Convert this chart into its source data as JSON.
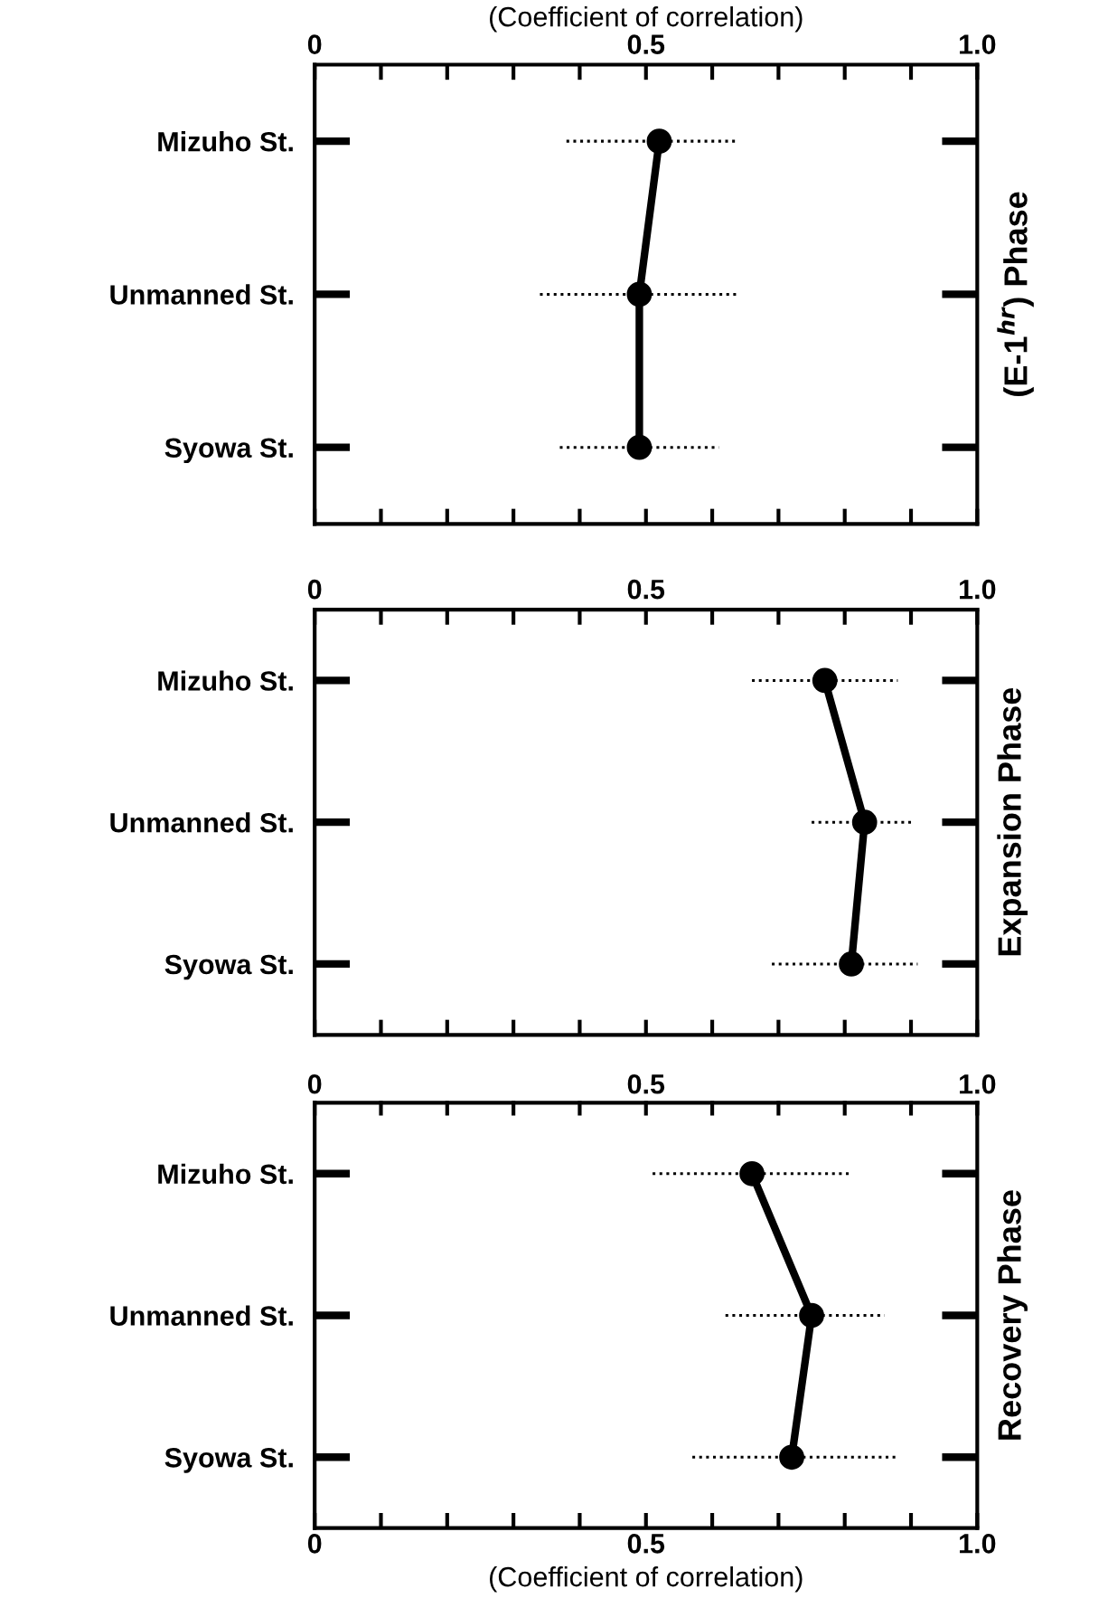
{
  "chart_data": [
    {
      "type": "line",
      "orientation": "horizontal",
      "categories": [
        "Mizuho St.",
        "Unmanned St.",
        "Syowa St."
      ],
      "xlabel": "(Coefficient of correlation)",
      "y2label": "(E-1$^{hr}$) Phase",
      "series": [
        {
          "color": "#000000",
          "values": [
            0.52,
            0.49,
            0.49
          ],
          "errors": [
            [
              0.38,
              0.64
            ],
            [
              0.34,
              0.64
            ],
            [
              0.37,
              0.61
            ]
          ]
        }
      ],
      "xlim": [
        0,
        1
      ],
      "xticks": [
        0,
        {
          "value": 0.1,
          "label": null
        },
        {
          "value": 0.2,
          "label": null
        },
        {
          "value": 0.3,
          "label": null
        },
        {
          "value": 0.4,
          "label": null
        },
        0.5,
        {
          "value": 0.6,
          "label": null
        },
        {
          "value": 0.7,
          "label": null
        },
        {
          "value": 0.8,
          "label": null
        },
        {
          "value": 0.9,
          "label": null
        },
        {
          "value": 1,
          "label": "1.0"
        }
      ],
      "marker": "circle",
      "line_style": "solid"
    },
    {
      "type": "line",
      "orientation": "horizontal",
      "categories": [
        "Mizuho St.",
        "Unmanned St.",
        "Syowa St."
      ],
      "y2label": "Expansion Phase",
      "series": [
        {
          "color": "#000000",
          "values": [
            0.77,
            0.83,
            0.81
          ],
          "errors": [
            [
              0.66,
              0.88
            ],
            [
              0.75,
              0.9
            ],
            [
              0.69,
              0.91
            ]
          ]
        }
      ],
      "xlim": [
        0,
        1
      ],
      "xticks": [
        0,
        {
          "value": 0.1,
          "label": null
        },
        {
          "value": 0.2,
          "label": null
        },
        {
          "value": 0.3,
          "label": null
        },
        {
          "value": 0.4,
          "label": null
        },
        0.5,
        {
          "value": 0.6,
          "label": null
        },
        {
          "value": 0.7,
          "label": null
        },
        {
          "value": 0.8,
          "label": null
        },
        {
          "value": 0.9,
          "label": null
        },
        {
          "value": 1,
          "label": "1.0"
        }
      ],
      "marker": "circle",
      "line_style": "solid"
    },
    {
      "type": "line",
      "orientation": "horizontal",
      "categories": [
        "Mizuho St.",
        "Unmanned St.",
        "Syowa St."
      ],
      "xlabel": "(Coefficient of correlation)",
      "y2label": "Recovery Phase",
      "series": [
        {
          "color": "#000000",
          "values": [
            0.66,
            0.75,
            0.72
          ],
          "errors": [
            [
              0.51,
              0.81
            ],
            [
              0.62,
              0.86
            ],
            [
              0.57,
              0.88
            ]
          ]
        }
      ],
      "xlim": [
        0,
        1
      ],
      "xticks": [
        0,
        {
          "value": 0.1,
          "label": null
        },
        {
          "value": 0.2,
          "label": null
        },
        {
          "value": 0.3,
          "label": null
        },
        {
          "value": 0.4,
          "label": null
        },
        0.5,
        {
          "value": 0.6,
          "label": null
        },
        {
          "value": 0.7,
          "label": null
        },
        {
          "value": 0.8,
          "label": null
        },
        {
          "value": 0.9,
          "label": null
        },
        {
          "value": 1,
          "label": "1.0"
        }
      ],
      "x2lim": [
        0,
        1
      ],
      "x2ticks": [
        0,
        {
          "value": 0.1,
          "label": null
        },
        {
          "value": 0.2,
          "label": null
        },
        {
          "value": 0.3,
          "label": null
        },
        {
          "value": 0.4,
          "label": null
        },
        0.5,
        {
          "value": 0.6,
          "label": null
        },
        {
          "value": 0.7,
          "label": null
        },
        {
          "value": 0.8,
          "label": null
        },
        {
          "value": 0.9,
          "label": null
        },
        {
          "value": 1,
          "label": "1.0"
        }
      ],
      "marker": "circle",
      "line_style": "solid"
    }
  ]
}
